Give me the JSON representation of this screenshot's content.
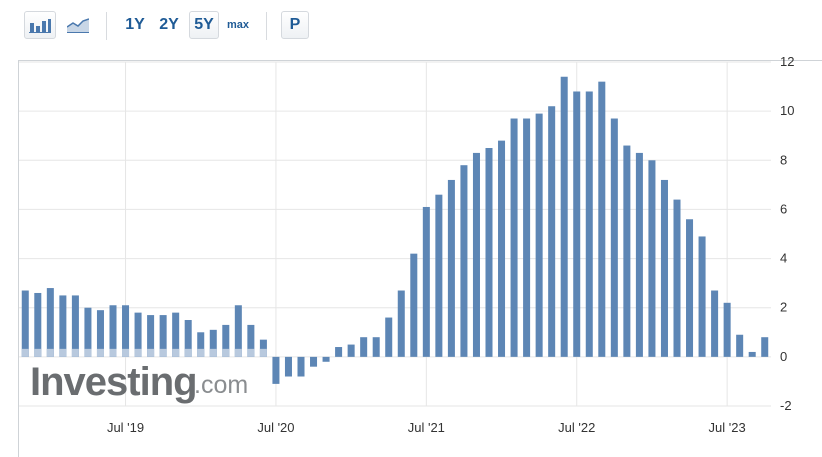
{
  "toolbar": {
    "bar_chart_icon": "bar-chart-icon",
    "line_chart_icon": "line-chart-icon",
    "range_1y": "1Y",
    "range_2y": "2Y",
    "range_5y": "5Y",
    "range_max": "max",
    "p_label": "P",
    "active_range": "5Y"
  },
  "watermark": {
    "brand": "Investing",
    "suffix": ".com"
  },
  "colors": {
    "bar": "#5d86b5",
    "bar_light": "#b8c9de",
    "grid": "#e6e6e6",
    "axis_text": "#333333",
    "link": "#1f5b96"
  },
  "chart_data": {
    "type": "bar",
    "title": "",
    "xlabel": "",
    "ylabel": "",
    "ylim": [
      -2,
      12
    ],
    "yticks": [
      "12",
      "10",
      "8",
      "6",
      "4",
      "2",
      "0",
      "-2"
    ],
    "x_tick_labels": [
      "Jul '19",
      "Jul '20",
      "Jul '21",
      "Jul '22",
      "Jul '23"
    ],
    "y_axis_position": "right",
    "grid": true,
    "legend": "none",
    "start_month": "2018-11",
    "values": [
      2.7,
      2.6,
      2.8,
      2.5,
      2.5,
      2.0,
      1.9,
      2.1,
      2.1,
      1.8,
      1.7,
      1.7,
      1.8,
      1.5,
      1.0,
      1.1,
      1.3,
      2.1,
      1.3,
      0.7,
      -1.1,
      -0.8,
      -0.8,
      -0.4,
      -0.2,
      0.4,
      0.5,
      0.8,
      0.8,
      1.6,
      2.7,
      4.2,
      6.1,
      6.6,
      7.2,
      7.8,
      8.3,
      8.5,
      8.8,
      9.7,
      9.7,
      9.9,
      10.2,
      11.4,
      10.8,
      10.8,
      11.2,
      9.7,
      8.6,
      8.3,
      8.0,
      7.2,
      6.4,
      5.6,
      4.9,
      2.7,
      2.2,
      0.9,
      0.2,
      0.8
    ]
  }
}
